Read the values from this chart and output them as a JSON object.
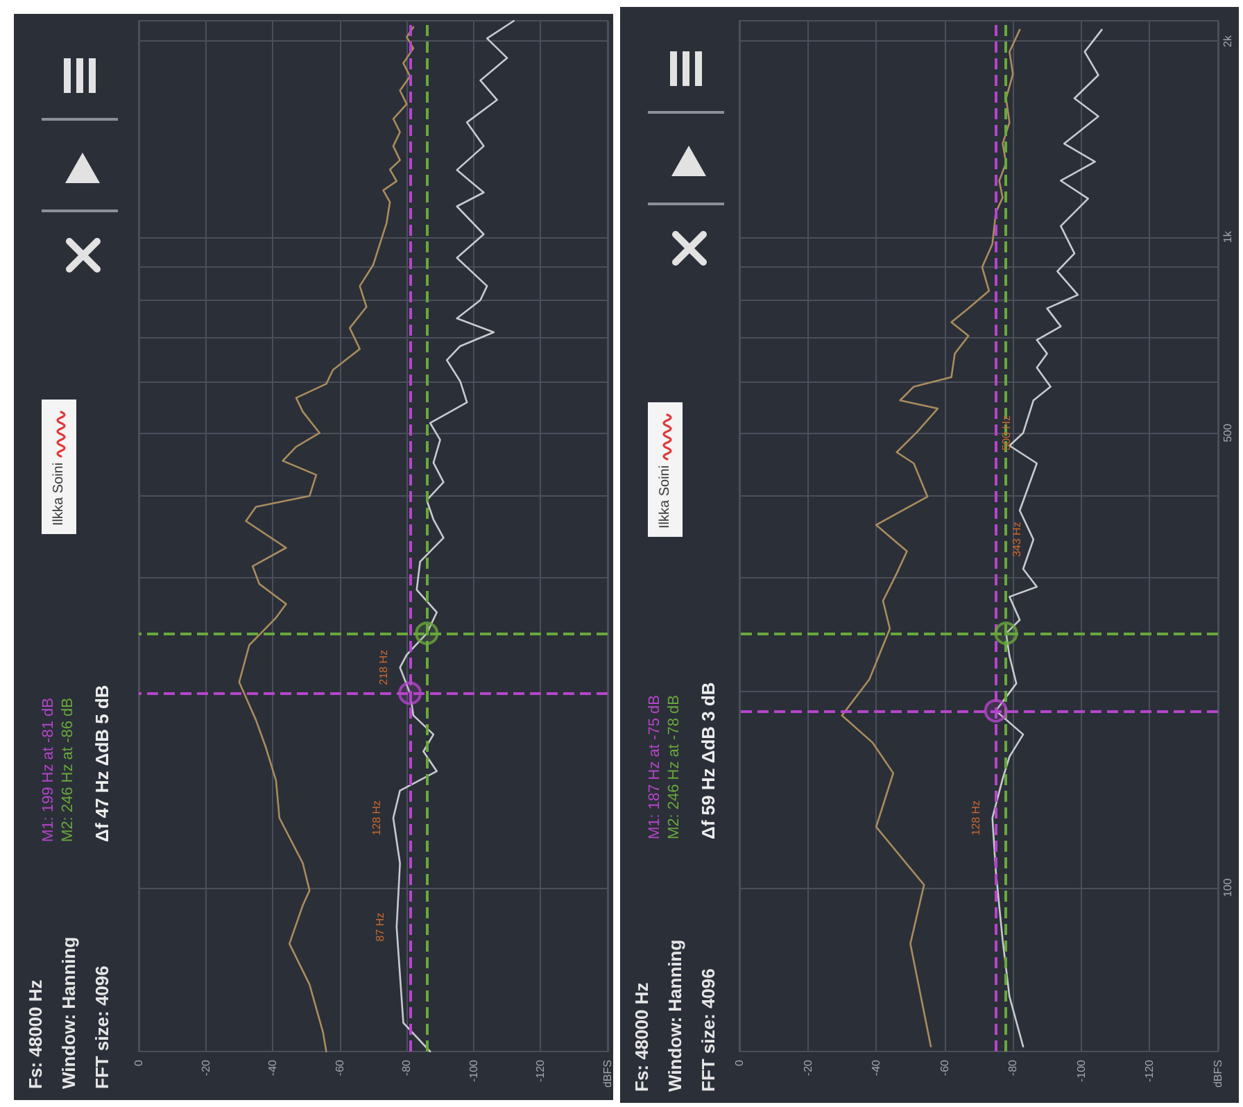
{
  "chart_data": [
    {
      "type": "line",
      "log": "y",
      "grid": true,
      "tick_labels": "x",
      "xlim": [
        0,
        -140
      ],
      "xticks": [
        0,
        -20,
        -40,
        -60,
        -80,
        -100,
        -120,
        {
          "value": -140,
          "label": "dBFS"
        }
      ],
      "ylim": [
        56,
        2150
      ],
      "yticks": [
        {
          "value": 100,
          "label": null
        },
        {
          "value": 300,
          "label": null
        },
        {
          "value": 400,
          "label": null
        },
        {
          "value": 500,
          "label": null
        },
        {
          "value": 600,
          "label": null
        },
        {
          "value": 700,
          "label": null
        },
        {
          "value": 800,
          "label": null
        },
        {
          "value": 900,
          "label": null
        },
        {
          "value": 1000,
          "label": null
        },
        {
          "value": 2000,
          "label": null
        }
      ],
      "series": [
        {
          "color": "#a98c5e",
          "x": [
            -56,
            -55,
            -51,
            -45,
            -49,
            -51,
            -49,
            -42,
            -41,
            -38,
            -35,
            -30,
            -33,
            -41,
            -44,
            -36,
            -34,
            -44,
            -32,
            -35,
            -51,
            -53,
            -43,
            -47,
            -54,
            -49,
            -47,
            -56,
            -58,
            -66,
            -63,
            -68,
            -66,
            -70,
            -72,
            -74,
            -75,
            -73,
            -77,
            -75,
            -78,
            -76,
            -78,
            -76,
            -80,
            -78,
            -81,
            -79,
            -82,
            -80,
            -82
          ],
          "values": [
            56,
            60,
            71,
            82,
            94,
            99,
            109,
            128,
            146,
            164,
            181,
            207,
            236,
            260,
            273,
            293,
            312,
            333,
            366,
            385,
            400,
            431,
            453,
            476,
            500,
            539,
            566,
            595,
            625,
            673,
            725,
            781,
            841,
            906,
            976,
            1051,
            1132,
            1180,
            1219,
            1270,
            1313,
            1380,
            1450,
            1520,
            1601,
            1680,
            1767,
            1850,
            1951,
            2030,
            2102
          ]
        },
        {
          "color": "#c9cacf",
          "x": [
            -87,
            -79,
            -77,
            -78,
            -76,
            -78,
            -89,
            -85,
            -88,
            -82,
            -81,
            -78,
            -80,
            -86,
            -89,
            -83,
            -84,
            -91,
            -88,
            -86,
            -91,
            -88,
            -90,
            -87,
            -98,
            -96,
            -92,
            -96,
            -106,
            -95,
            -102,
            -104,
            -95,
            -103,
            -95,
            -103,
            -95,
            -103,
            -98,
            -107,
            -102,
            -110,
            -104,
            -112
          ],
          "values": [
            56,
            62,
            87,
            109,
            128,
            141,
            151,
            162,
            172,
            184,
            199,
            218,
            228,
            246,
            265,
            287,
            317,
            345,
            368,
            394,
            420,
            450,
            488,
            518,
            557,
            600,
            647,
            680,
            714,
            750,
            800,
            841,
            929,
            1010,
            1115,
            1171,
            1268,
            1380,
            1501,
            1625,
            1741,
            1885,
            2020,
            2150
          ]
        },
        {
          "type": "scatter",
          "marker": "circle",
          "x": [
            -81,
            -86
          ],
          "values": [
            199,
            246
          ],
          "colors": [
            "#b545cc",
            "#69a83c"
          ]
        }
      ],
      "ref_lines": [
        {
          "axis": "y",
          "value": 199,
          "color": "#b545cc",
          "label": "M1: 199 Hz at -81 dB"
        },
        {
          "axis": "x",
          "value": -81,
          "color": "#b545cc"
        },
        {
          "axis": "y",
          "value": 246,
          "color": "#69a83c",
          "label": "M2: 246 Hz at -86 dB"
        },
        {
          "axis": "x",
          "value": -86,
          "color": "#69a83c"
        }
      ],
      "annotations": [
        "Fs: 48000 Hz",
        "Window: Hanning",
        "FFT size: 4096",
        "Δf 47 Hz ΔdB 5 dB",
        "Ilkka Soini",
        {
          "text": "218 Hz",
          "x": -78,
          "y": 218
        },
        {
          "text": "128 Hz",
          "x": -76,
          "y": 128
        },
        {
          "text": "87 Hz",
          "x": -77,
          "y": 87
        }
      ]
    },
    {
      "type": "line",
      "log": "y",
      "grid": true,
      "xlim": [
        0,
        -140
      ],
      "xticks": [
        0,
        -20,
        -40,
        -60,
        -80,
        -100,
        -120,
        {
          "value": -140,
          "label": "dBFS"
        }
      ],
      "ylim": [
        56,
        2150
      ],
      "yticks": [
        100,
        {
          "value": 200,
          "label": null
        },
        {
          "value": 300,
          "label": null
        },
        {
          "value": 400,
          "label": null
        },
        500,
        {
          "value": 600,
          "label": null
        },
        {
          "value": 700,
          "label": null
        },
        {
          "value": 800,
          "label": null
        },
        {
          "value": 900,
          "label": null
        },
        {
          "value": 1000,
          "label": "1k"
        },
        {
          "value": 2000,
          "label": "2k"
        }
      ],
      "series": [
        {
          "color": "#a98c5e",
          "x": [
            -56,
            -50,
            -54,
            -40,
            -45,
            -39,
            -30,
            -38,
            -44,
            -42,
            -46,
            -49,
            -40,
            -55,
            -51,
            -46,
            -52,
            -58,
            -47,
            -51,
            -62,
            -63,
            -67,
            -62,
            -67,
            -73,
            -71,
            -74,
            -75,
            -77,
            -76,
            -78,
            -77,
            -79,
            -78,
            -80,
            -79,
            -82
          ],
          "values": [
            57,
            82,
            101,
            124,
            150,
            167,
            184,
            209,
            250,
            276,
            304,
            329,
            361,
            399,
            449,
            467,
            502,
            545,
            561,
            589,
            609,
            662,
            705,
            740,
            777,
            827,
            899,
            976,
            1091,
            1150,
            1221,
            1300,
            1392,
            1500,
            1634,
            1780,
            1927,
            2083
          ]
        },
        {
          "color": "#c9cacf",
          "x": [
            -83,
            -79,
            -77,
            -75,
            -74,
            -77,
            -79,
            -83,
            -75,
            -81,
            -79,
            -78,
            -82,
            -79,
            -87,
            -83,
            -86,
            -82,
            -87,
            -79,
            -83,
            -86,
            -91,
            -87,
            -90,
            -87,
            -94,
            -90,
            -99,
            -93,
            -98,
            -94,
            -102,
            -94,
            -104,
            -95,
            -105,
            -98,
            -105,
            -101,
            -106
          ],
          "values": [
            57,
            68,
            83,
            106,
            128,
            147,
            159,
            172,
            187,
            206,
            227,
            246,
            258,
            280,
            290,
            309,
            343,
            380,
            449,
            478,
            500,
            561,
            589,
            630,
            662,
            695,
            729,
            777,
            815,
            886,
            944,
            1040,
            1146,
            1221,
            1306,
            1392,
            1533,
            1634,
            1774,
            1927,
            2083
          ]
        },
        {
          "type": "scatter",
          "marker": "circle",
          "x": [
            -75,
            -78
          ],
          "values": [
            187,
            246
          ],
          "colors": [
            "#b545cc",
            "#69a83c"
          ]
        }
      ],
      "ref_lines": [
        {
          "axis": "y",
          "value": 187,
          "color": "#b545cc",
          "label": "M1: 187 Hz at -75 dB"
        },
        {
          "axis": "x",
          "value": -75,
          "color": "#b545cc"
        },
        {
          "axis": "y",
          "value": 246,
          "color": "#69a83c",
          "label": "M2: 246 Hz at -78 dB"
        },
        {
          "axis": "x",
          "value": -78,
          "color": "#69a83c"
        }
      ],
      "annotations": [
        "Fs: 48000 Hz",
        "Window: Hanning",
        "FFT size: 4096",
        "Δf 59 Hz ΔdB 3 dB",
        "Ilkka Soini",
        {
          "text": "500 Hz",
          "x": -83,
          "y": 500
        },
        {
          "text": "343 Hz",
          "x": -86,
          "y": 343
        },
        {
          "text": "128 Hz",
          "x": -74,
          "y": 128
        }
      ]
    }
  ]
}
